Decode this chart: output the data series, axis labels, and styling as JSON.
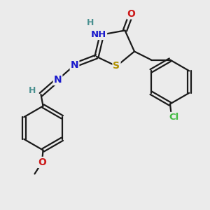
{
  "bg_color": "#ebebeb",
  "atom_colors": {
    "C": "#000000",
    "H": "#4a9090",
    "N": "#1a1acc",
    "O": "#cc1a1a",
    "S": "#b09000",
    "Cl": "#40bb40"
  },
  "bond_color": "#1a1a1a",
  "bond_width": 1.6,
  "fig_size": [
    3.0,
    3.0
  ],
  "dpi": 100,
  "xlim": [
    0,
    10
  ],
  "ylim": [
    0,
    10
  ]
}
